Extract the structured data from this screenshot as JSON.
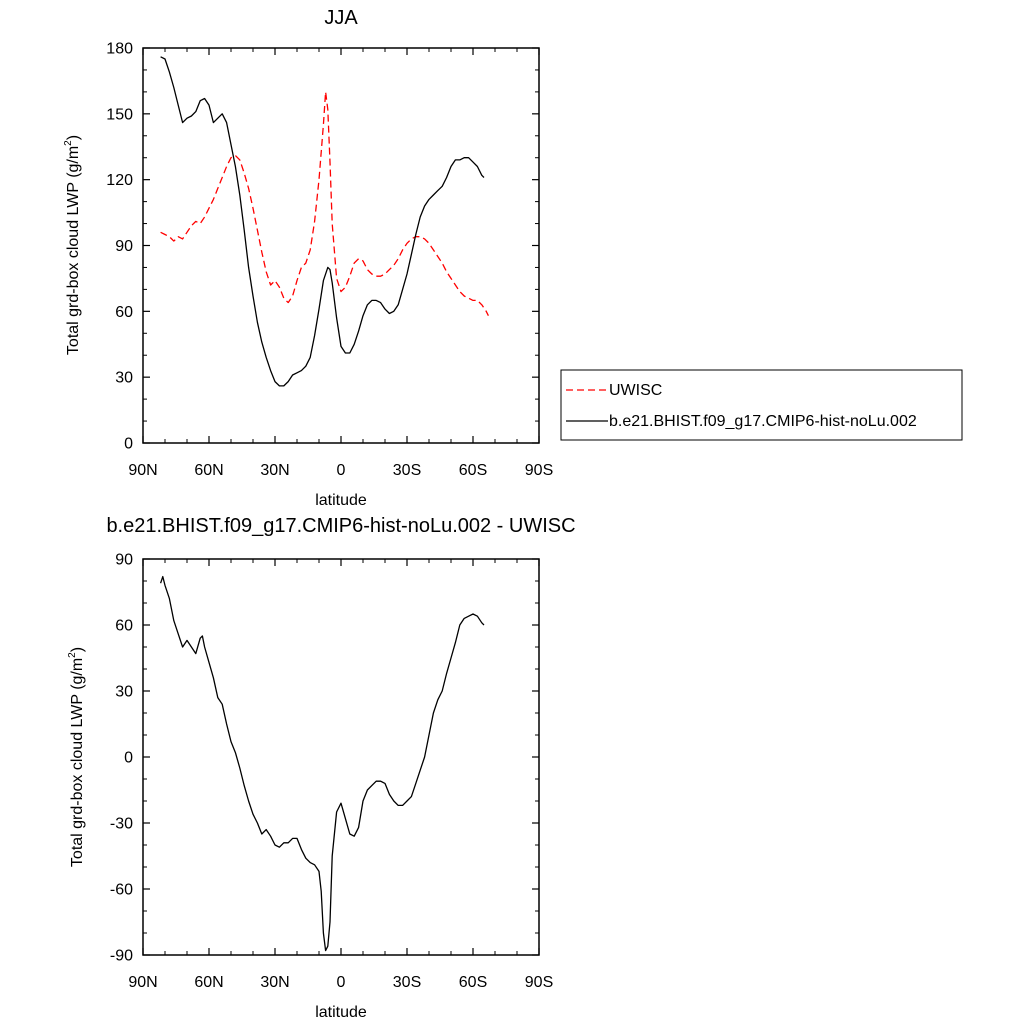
{
  "chart_data": [
    {
      "type": "line",
      "title": "JJA",
      "xlabel": "latitude",
      "ylabel_main": "Total grd-box cloud LWP (g/m",
      "ylabel_sup": "2",
      "ylabel_tail": ")",
      "xlim": [
        90,
        -90
      ],
      "ylim": [
        0,
        180
      ],
      "xticks": [
        90,
        60,
        30,
        0,
        -30,
        -60,
        -90
      ],
      "xtick_labels": [
        "90N",
        "60N",
        "30N",
        "0",
        "30S",
        "60S",
        "90S"
      ],
      "yticks": [
        0,
        30,
        60,
        90,
        120,
        150,
        180
      ],
      "ytick_labels": [
        "0",
        "30",
        "60",
        "90",
        "120",
        "150",
        "180"
      ],
      "grid": false,
      "legend_placement": "right",
      "series": [
        {
          "name": "UWISC",
          "color": "#ff0000",
          "dash": "dashed",
          "x": [
            82,
            80,
            78,
            76,
            74,
            72,
            70,
            68,
            66,
            64,
            62,
            60,
            58,
            56,
            54,
            52,
            50,
            48,
            46,
            44,
            42,
            40,
            38,
            36,
            34,
            32,
            30,
            28,
            26,
            24,
            22,
            20,
            18,
            16,
            14,
            12,
            10,
            8,
            7,
            6,
            5,
            4,
            2,
            0,
            -2,
            -4,
            -6,
            -8,
            -10,
            -12,
            -14,
            -16,
            -18,
            -20,
            -22,
            -24,
            -26,
            -28,
            -30,
            -32,
            -34,
            -36,
            -38,
            -40,
            -42,
            -44,
            -46,
            -48,
            -50,
            -52,
            -54,
            -56,
            -58,
            -60,
            -62,
            -64,
            -66,
            -67
          ],
          "y": [
            96,
            95,
            94,
            92,
            94,
            93,
            96,
            99,
            101,
            100,
            103,
            107,
            111,
            116,
            121,
            126,
            130,
            131,
            129,
            123,
            116,
            107,
            97,
            87,
            78,
            72,
            74,
            71,
            66,
            64,
            67,
            74,
            80,
            82,
            88,
            101,
            120,
            145,
            160,
            152,
            128,
            100,
            75,
            69,
            71,
            76,
            82,
            84,
            83,
            79,
            77,
            76,
            76,
            77,
            79,
            81,
            84,
            88,
            91,
            93,
            94,
            94,
            93,
            91,
            88,
            85,
            82,
            78,
            75,
            72,
            69,
            67,
            66,
            65,
            65,
            63,
            60,
            58
          ]
        },
        {
          "name": "b.e21.BHIST.f09_g17.CMIP6-hist-noLu.002",
          "color": "#000000",
          "dash": "solid",
          "x": [
            82,
            80,
            78,
            76,
            74,
            72,
            70,
            68,
            66,
            64,
            62,
            60,
            58,
            56,
            54,
            52,
            50,
            48,
            46,
            44,
            42,
            40,
            38,
            36,
            34,
            32,
            30,
            28,
            26,
            24,
            22,
            20,
            18,
            16,
            14,
            12,
            10,
            8,
            6,
            5,
            4,
            2,
            0,
            -2,
            -4,
            -6,
            -8,
            -10,
            -12,
            -14,
            -16,
            -18,
            -20,
            -22,
            -24,
            -26,
            -28,
            -30,
            -32,
            -34,
            -36,
            -38,
            -40,
            -42,
            -44,
            -46,
            -48,
            -50,
            -52,
            -54,
            -56,
            -58,
            -60,
            -62,
            -64,
            -65
          ],
          "y": [
            176,
            175,
            169,
            162,
            154,
            146,
            148,
            149,
            151,
            156,
            157,
            154,
            146,
            148,
            150,
            146,
            136,
            126,
            113,
            97,
            80,
            67,
            55,
            46,
            39,
            33,
            28,
            26,
            26,
            28,
            31,
            32,
            33,
            35,
            39,
            49,
            61,
            74,
            80,
            79,
            73,
            57,
            44,
            41,
            41,
            45,
            51,
            58,
            63,
            65,
            65,
            64,
            61,
            59,
            60,
            63,
            70,
            77,
            86,
            95,
            103,
            108,
            111,
            113,
            115,
            117,
            121,
            126,
            129,
            129,
            130,
            130,
            128,
            126,
            122,
            121
          ]
        }
      ]
    },
    {
      "type": "line",
      "title": "b.e21.BHIST.f09_g17.CMIP6-hist-noLu.002 - UWISC",
      "xlabel": "latitude",
      "ylabel_main": "Total grd-box cloud LWP (g/m",
      "ylabel_sup": "2",
      "ylabel_tail": ")",
      "xlim": [
        90,
        -90
      ],
      "ylim": [
        -90,
        90
      ],
      "xticks": [
        90,
        60,
        30,
        0,
        -30,
        -60,
        -90
      ],
      "xtick_labels": [
        "90N",
        "60N",
        "30N",
        "0",
        "30S",
        "60S",
        "90S"
      ],
      "yticks": [
        -90,
        -60,
        -30,
        0,
        30,
        60,
        90
      ],
      "ytick_labels": [
        "-90",
        "-60",
        "-30",
        "0",
        "30",
        "60",
        "90"
      ],
      "grid": false,
      "series": [
        {
          "color": "#000000",
          "dash": "solid",
          "x": [
            82,
            81,
            80,
            78,
            76,
            74,
            72,
            70,
            68,
            66,
            64,
            63,
            62,
            60,
            58,
            56,
            54,
            52,
            50,
            48,
            46,
            44,
            42,
            40,
            38,
            36,
            34,
            32,
            30,
            28,
            26,
            24,
            22,
            20,
            18,
            16,
            14,
            12,
            10,
            9,
            8,
            7,
            6,
            5,
            4,
            2,
            0,
            -2,
            -4,
            -6,
            -8,
            -10,
            -12,
            -14,
            -16,
            -18,
            -20,
            -22,
            -24,
            -26,
            -28,
            -30,
            -32,
            -34,
            -36,
            -38,
            -40,
            -42,
            -44,
            -46,
            -48,
            -50,
            -52,
            -54,
            -56,
            -58,
            -60,
            -62,
            -64,
            -65
          ],
          "y": [
            79,
            82,
            78,
            72,
            62,
            56,
            50,
            53,
            50,
            47,
            54,
            55,
            50,
            43,
            36,
            27,
            24,
            15,
            7,
            2,
            -5,
            -13,
            -20,
            -26,
            -30,
            -35,
            -33,
            -36,
            -40,
            -41,
            -39,
            -39,
            -37,
            -37,
            -42,
            -46,
            -48,
            -49,
            -52,
            -61,
            -80,
            -88,
            -86,
            -75,
            -45,
            -25,
            -21,
            -28,
            -35,
            -36,
            -32,
            -20,
            -15,
            -13,
            -11,
            -11,
            -12,
            -17,
            -20,
            -22,
            -22,
            -20,
            -18,
            -12,
            -6,
            0,
            10,
            20,
            26,
            30,
            38,
            45,
            52,
            60,
            63,
            64,
            65,
            64,
            61,
            60
          ]
        }
      ]
    }
  ]
}
